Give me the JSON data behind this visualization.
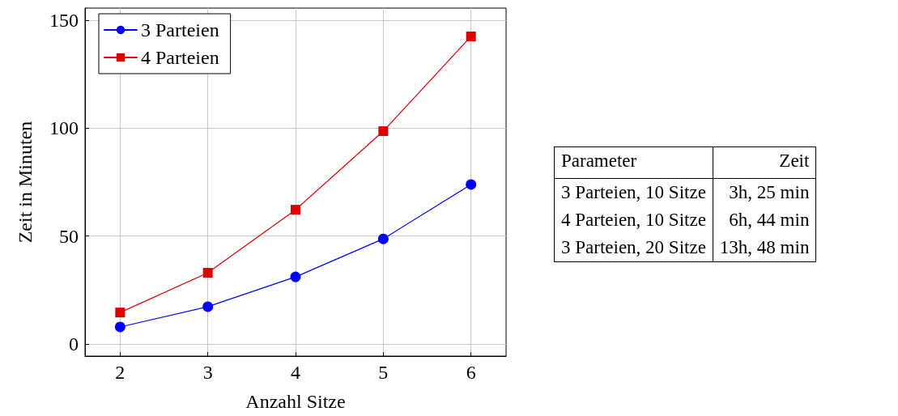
{
  "chart_data": [
    {
      "type": "line",
      "xlabel": "Anzahl Sitze",
      "ylabel": "Zeit in Minuten",
      "x": [
        2,
        3,
        4,
        5,
        6
      ],
      "series": [
        {
          "name": "3 Parteien",
          "color": "#0000ff",
          "marker": "circle",
          "values": [
            7.9,
            17.3,
            31.1,
            48.7,
            73.9
          ]
        },
        {
          "name": "4 Parteien",
          "color": "#dd0000",
          "marker": "square",
          "values": [
            14.6,
            33,
            62.2,
            98.6,
            142.5
          ]
        }
      ],
      "xlim": [
        1.6,
        6.4
      ],
      "xticks": [
        2,
        3,
        4,
        5,
        6
      ],
      "ylim": [
        -5.6,
        155.6
      ],
      "yticks": [
        0,
        50,
        100,
        150
      ],
      "grid": true,
      "legend": "top left",
      "line_style": "solid"
    },
    {
      "type": "other",
      "annotations": [
        "Parameter",
        "Zeit",
        "3 Parteien, 10 Sitze",
        "3h, 25 min",
        "4 Parteien, 10 Sitze",
        "6h, 44 min",
        "3 Parteien, 20 Sitze",
        "13h, 48 min"
      ]
    }
  ]
}
